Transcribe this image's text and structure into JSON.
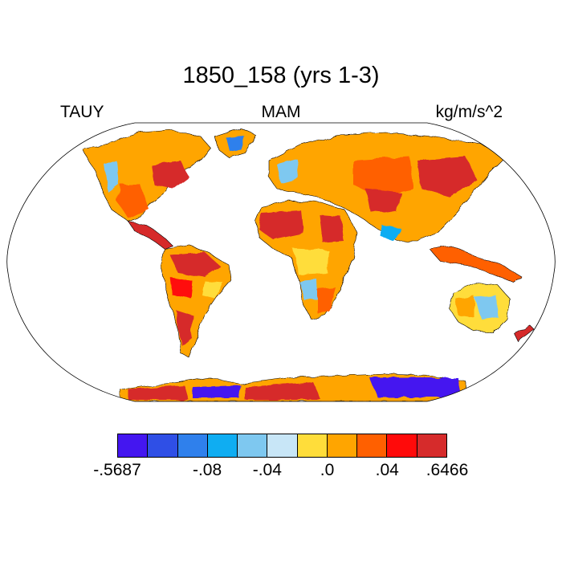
{
  "title": "1850_158 (yrs 1-3)",
  "left_label": "TAUY",
  "center_label": "MAM",
  "right_label": "kg/m/s^2",
  "colorbar": {
    "colors": [
      "#4416f0",
      "#2f4fe6",
      "#2f80ec",
      "#0fadf2",
      "#7ec8f0",
      "#c8e6f7",
      "#ffdd3a",
      "#ffa500",
      "#ff6000",
      "#ff0a0a",
      "#d62b2b"
    ],
    "tick_labels": [
      "-.5687",
      "-.08",
      "-.04",
      ".0",
      ".04",
      ".6466"
    ]
  },
  "map": {
    "projection": "Robinson",
    "coastlines": true,
    "land_filled": true,
    "ocean_filled": false
  }
}
